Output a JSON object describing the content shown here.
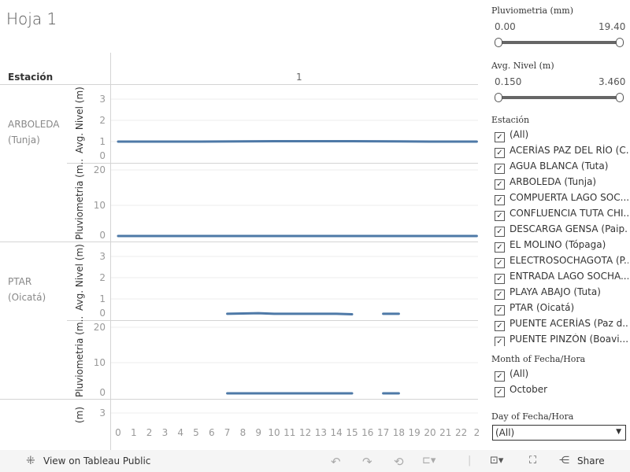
{
  "title": "Hoja 1",
  "header": {
    "row_label": "Estación",
    "column_label": "1"
  },
  "rows": [
    {
      "station": "ARBOLEDA (Tunja)"
    },
    {
      "station": "PTAR (Oicatá)"
    }
  ],
  "axes": {
    "nivel_title": "Avg. Nivel (m)",
    "pluvio_title": "Pluviometria (m..",
    "partial_title": "(m)"
  },
  "chart_data": [
    {
      "type": "line",
      "station": "ARBOLEDA (Tunja)",
      "ylabel": "Avg. Nivel (m)",
      "ylim": [
        0,
        3
      ],
      "yticks": [
        0,
        1,
        2,
        3
      ],
      "x": [
        0,
        5,
        10,
        15,
        20,
        23
      ],
      "y": [
        1,
        1,
        1.02,
        1.02,
        1,
        1
      ]
    },
    {
      "type": "line",
      "station": "ARBOLEDA (Tunja)",
      "ylabel": "Pluviometria (mm)",
      "ylim": [
        0,
        20
      ],
      "yticks": [
        0,
        10,
        20
      ],
      "x": [
        0,
        23
      ],
      "y": [
        0,
        0
      ]
    },
    {
      "type": "line",
      "station": "PTAR (Oicatá)",
      "ylabel": "Avg. Nivel (m)",
      "ylim": [
        0,
        3
      ],
      "yticks": [
        0,
        1,
        2,
        3
      ],
      "segments": [
        {
          "x": [
            7,
            9,
            10,
            14,
            15
          ],
          "y": [
            0.3,
            0.33,
            0.3,
            0.3,
            0.28
          ]
        },
        {
          "x": [
            17,
            18
          ],
          "y": [
            0.3,
            0.3
          ]
        }
      ]
    },
    {
      "type": "line",
      "station": "PTAR (Oicatá)",
      "ylabel": "Pluviometria (mm)",
      "ylim": [
        0,
        20
      ],
      "yticks": [
        0,
        10,
        20
      ],
      "segments": [
        {
          "x": [
            7,
            9,
            10,
            11,
            15
          ],
          "y": [
            0,
            0,
            0.3,
            0,
            0
          ]
        },
        {
          "x": [
            17,
            18
          ],
          "y": [
            0,
            0
          ]
        }
      ]
    }
  ],
  "xaxis": {
    "ticks": [
      "0",
      "1",
      "2",
      "3",
      "4",
      "5",
      "6",
      "7",
      "8",
      "9",
      "10",
      "11",
      "12",
      "13",
      "14",
      "15",
      "16",
      "17",
      "18",
      "19",
      "20",
      "21",
      "22",
      "2"
    ]
  },
  "partial_tick": "3",
  "filters": {
    "pluvio": {
      "title": "Pluviometria (mm)",
      "min": "0.00",
      "max": "19.40"
    },
    "nivel": {
      "title": "Avg. Nivel (m)",
      "min": "0.150",
      "max": "3.460"
    },
    "estacion": {
      "title": "Estación",
      "items": [
        "(All)",
        "ACERÍAS PAZ DEL RÍO (C...",
        "AGUA BLANCA (Tuta)",
        "ARBOLEDA (Tunja)",
        "COMPUERTA LAGO SOC...",
        "CONFLUENCIA TUTA CHI...",
        "DESCARGA GENSA (Paip...",
        "EL MOLINO (Tópaga)",
        "ELECTROSOCHAGOTA (P...",
        "ENTRADA LAGO SOCHA...",
        "PLAYA ABAJO (Tuta)",
        "PTAR (Oicatá)",
        "PUENTE ACERÍAS (Paz d...",
        "PUENTE PINZÓN (Boavi..."
      ]
    },
    "month": {
      "title": "Month of Fecha/Hora",
      "items": [
        "(All)",
        "October"
      ]
    },
    "day": {
      "title": "Day of Fecha/Hora",
      "value": "(All)"
    }
  },
  "toolbar": {
    "view": "View on Tableau Public",
    "share": "Share"
  },
  "colors": {
    "line": "#4e79a7"
  }
}
